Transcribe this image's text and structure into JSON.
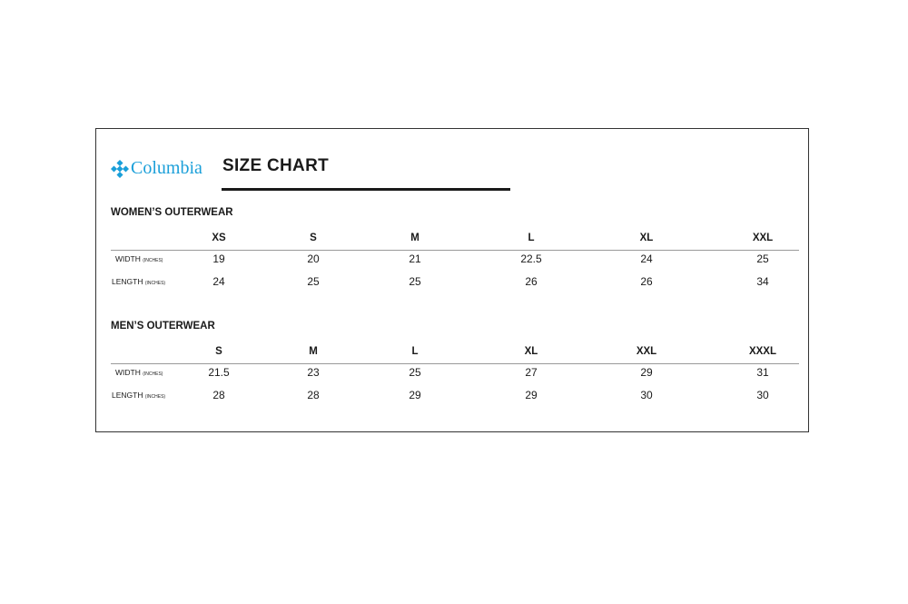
{
  "brand": {
    "name": "Columbia",
    "color": "#1a9fd9",
    "icon": "columbia-diamond-logo"
  },
  "title": "SIZE CHART",
  "unit_label": "(INCHES)",
  "tables": [
    {
      "heading": "WOMEN’S OUTERWEAR",
      "sizes": [
        "XS",
        "S",
        "M",
        "L",
        "XL",
        "XXL"
      ],
      "rows": [
        {
          "label": "WIDTH",
          "values": [
            "19",
            "20",
            "21",
            "22.5",
            "24",
            "25"
          ]
        },
        {
          "label": "LENGTH",
          "values": [
            "24",
            "25",
            "25",
            "26",
            "26",
            "34"
          ]
        }
      ]
    },
    {
      "heading": "MEN’S OUTERWEAR",
      "sizes": [
        "S",
        "M",
        "L",
        "XL",
        "XXL",
        "XXXL"
      ],
      "rows": [
        {
          "label": "WIDTH",
          "values": [
            "21.5",
            "23",
            "25",
            "27",
            "29",
            "31"
          ]
        },
        {
          "label": "LENGTH",
          "values": [
            "28",
            "28",
            "29",
            "29",
            "30",
            "30"
          ]
        }
      ]
    }
  ]
}
